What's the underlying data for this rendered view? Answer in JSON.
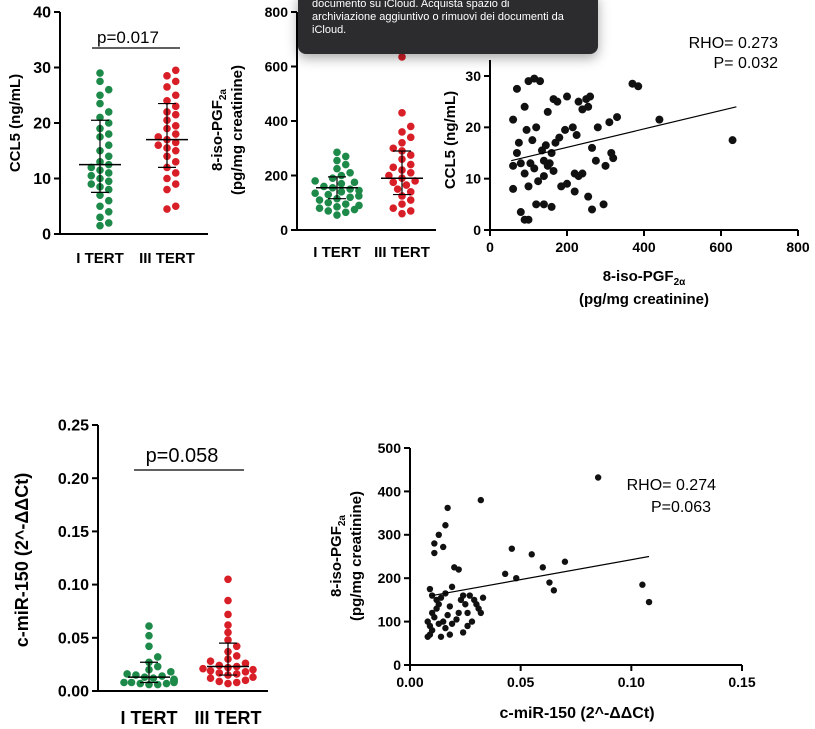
{
  "tooltip": {
    "lines": [
      "documento su iCloud. Acquista spazio di",
      "archiviazione aggiuntivo o rimuovi dei documenti da",
      "iCloud."
    ]
  },
  "colors": {
    "group1": "#1e8a4a",
    "group2": "#d81e27",
    "scatter": "#111111",
    "tooltip_bg": "#2c2c2e"
  },
  "chart_data": [
    {
      "id": "ccl5-dot",
      "type": "scatter",
      "ylabel": "CCL5 (ng/mL)",
      "ylim": [
        0,
        40
      ],
      "yticks": [
        0,
        10,
        20,
        30,
        40
      ],
      "ytick_labels": [
        "0",
        "10",
        "20",
        "30",
        "40"
      ],
      "categories": [
        "I TERT",
        "III TERT"
      ],
      "annotation": "p=0.017",
      "series": [
        {
          "category": "I TERT",
          "color": "#1e8a4a",
          "values": [
            29,
            27.5,
            26,
            25,
            23.5,
            22,
            21,
            20,
            19,
            18,
            17.5,
            16,
            15,
            14,
            13,
            12.5,
            12,
            11.5,
            11,
            10.5,
            10,
            9.5,
            9,
            8.5,
            8,
            7,
            6,
            5,
            4,
            3,
            2,
            1.5
          ],
          "median": 12.5,
          "iqr": [
            7.5,
            20.5
          ]
        },
        {
          "category": "III TERT",
          "color": "#d81e27",
          "values": [
            29.5,
            28.5,
            27.5,
            26.5,
            25,
            24,
            23,
            22,
            21.5,
            20.5,
            19.5,
            19,
            18,
            17.5,
            17,
            16.5,
            16,
            15.5,
            15,
            14,
            13,
            12,
            11,
            10,
            9,
            8,
            5,
            4.5
          ],
          "median": 17,
          "iqr": [
            12,
            23.5
          ]
        }
      ]
    },
    {
      "id": "iso-dot",
      "type": "scatter",
      "ylabel": "8-iso-PGF2a (pg/mg creatinine)",
      "ylim": [
        0,
        800
      ],
      "yticks": [
        0,
        200,
        400,
        600,
        800
      ],
      "ytick_labels": [
        "0",
        "200",
        "400",
        "600",
        "800"
      ],
      "categories": [
        "I TERT",
        "III TERT"
      ],
      "series": [
        {
          "category": "I TERT",
          "color": "#1e8a4a",
          "values": [
            285,
            270,
            255,
            240,
            225,
            210,
            200,
            190,
            180,
            175,
            170,
            160,
            155,
            150,
            145,
            140,
            135,
            130,
            125,
            120,
            115,
            110,
            100,
            95,
            90,
            85,
            80,
            75,
            70,
            65,
            55
          ],
          "median": 155,
          "iqr": [
            115,
            195
          ]
        },
        {
          "category": "III TERT",
          "color": "#d81e27",
          "values": [
            635,
            430,
            380,
            360,
            340,
            320,
            300,
            290,
            275,
            260,
            240,
            230,
            220,
            210,
            200,
            190,
            180,
            175,
            165,
            150,
            140,
            125,
            110,
            95,
            80,
            70,
            60
          ],
          "median": 190,
          "iqr": [
            130,
            290
          ]
        }
      ]
    },
    {
      "id": "ccl5-iso-corr",
      "type": "scatter",
      "xlabel": "8-iso-PGF2α (pg/mg creatinine)",
      "ylabel": "CCL5 (ng/mL)",
      "xlim": [
        0,
        800
      ],
      "ylim": [
        0,
        30
      ],
      "xticks": [
        0,
        200,
        400,
        600,
        800
      ],
      "xtick_labels": [
        "0",
        "200",
        "400",
        "600",
        "800"
      ],
      "yticks": [
        0,
        10,
        20,
        30
      ],
      "ytick_labels": [
        "0",
        "10",
        "20",
        "30"
      ],
      "annotation": [
        "RHO= 0.273",
        "P= 0.032"
      ],
      "fit": {
        "x": [
          55,
          640
        ],
        "y": [
          13.5,
          24
        ]
      },
      "points": [
        [
          70,
          27.5
        ],
        [
          90,
          24
        ],
        [
          100,
          29
        ],
        [
          115,
          29.5
        ],
        [
          130,
          29
        ],
        [
          150,
          23
        ],
        [
          165,
          25.5
        ],
        [
          175,
          25
        ],
        [
          200,
          26
        ],
        [
          230,
          25
        ],
        [
          250,
          25.5
        ],
        [
          260,
          26
        ],
        [
          255,
          24
        ],
        [
          280,
          20
        ],
        [
          310,
          21
        ],
        [
          330,
          22
        ],
        [
          370,
          28.5
        ],
        [
          385,
          28
        ],
        [
          440,
          21.5
        ],
        [
          630,
          17.5
        ],
        [
          60,
          21.5
        ],
        [
          75,
          17
        ],
        [
          95,
          19.5
        ],
        [
          110,
          17.5
        ],
        [
          120,
          20
        ],
        [
          135,
          15.5
        ],
        [
          140,
          13.5
        ],
        [
          145,
          16.5
        ],
        [
          160,
          15
        ],
        [
          170,
          17
        ],
        [
          180,
          18
        ],
        [
          195,
          19.5
        ],
        [
          215,
          20
        ],
        [
          225,
          18.5
        ],
        [
          240,
          23.5
        ],
        [
          265,
          16
        ],
        [
          275,
          13.5
        ],
        [
          300,
          12.5
        ],
        [
          315,
          15
        ],
        [
          320,
          14
        ],
        [
          60,
          12.5
        ],
        [
          70,
          15
        ],
        [
          80,
          13
        ],
        [
          90,
          11
        ],
        [
          100,
          8.5
        ],
        [
          105,
          13
        ],
        [
          115,
          12
        ],
        [
          125,
          9.5
        ],
        [
          140,
          10.5
        ],
        [
          150,
          12.5
        ],
        [
          155,
          13
        ],
        [
          165,
          11.5
        ],
        [
          185,
          8.5
        ],
        [
          200,
          9
        ],
        [
          220,
          7.5
        ],
        [
          240,
          11
        ],
        [
          255,
          6.5
        ],
        [
          265,
          4
        ],
        [
          295,
          5
        ],
        [
          60,
          8
        ],
        [
          80,
          3.5
        ],
        [
          90,
          2
        ],
        [
          100,
          2
        ],
        [
          120,
          5
        ],
        [
          140,
          5
        ],
        [
          160,
          4.5
        ],
        [
          220,
          11
        ],
        [
          230,
          10.5
        ]
      ]
    },
    {
      "id": "mir-dot",
      "type": "scatter",
      "ylabel": "c-miR-150 (2^-ΔΔCt)",
      "ylim": [
        0,
        0.25
      ],
      "yticks": [
        0,
        0.05,
        0.1,
        0.15,
        0.2,
        0.25
      ],
      "ytick_labels": [
        "0.00",
        "0.05",
        "0.10",
        "0.15",
        "0.20",
        "0.25"
      ],
      "categories": [
        "I TERT",
        "III TERT"
      ],
      "annotation": "p=0.058",
      "series": [
        {
          "category": "I TERT",
          "color": "#1e8a4a",
          "values": [
            0.061,
            0.052,
            0.042,
            0.032,
            0.027,
            0.023,
            0.02,
            0.018,
            0.016,
            0.015,
            0.014,
            0.013,
            0.012,
            0.011,
            0.01,
            0.01,
            0.009,
            0.009,
            0.008,
            0.008,
            0.008,
            0.007,
            0.007,
            0.006,
            0.006
          ],
          "median": 0.013,
          "iqr": [
            0.008,
            0.027
          ]
        },
        {
          "category": "III TERT",
          "color": "#d81e27",
          "values": [
            0.105,
            0.085,
            0.072,
            0.062,
            0.055,
            0.048,
            0.042,
            0.037,
            0.033,
            0.03,
            0.028,
            0.026,
            0.024,
            0.023,
            0.022,
            0.021,
            0.02,
            0.019,
            0.018,
            0.017,
            0.016,
            0.015,
            0.013,
            0.012,
            0.01,
            0.009,
            0.008,
            0.007
          ],
          "median": 0.023,
          "iqr": [
            0.015,
            0.045
          ]
        }
      ]
    },
    {
      "id": "iso-mir-corr",
      "type": "scatter",
      "xlabel": "c-miR-150 (2^-ΔΔCt)",
      "ylabel": "8-iso-PGF2a (pg/mg creatinine)",
      "xlim": [
        0,
        0.15
      ],
      "ylim": [
        0,
        500
      ],
      "xticks": [
        0,
        0.05,
        0.1,
        0.15
      ],
      "xtick_labels": [
        "0.00",
        "0.05",
        "0.10",
        "0.15"
      ],
      "yticks": [
        0,
        100,
        200,
        300,
        400,
        500
      ],
      "ytick_labels": [
        "0",
        "100",
        "200",
        "300",
        "400",
        "500"
      ],
      "annotation": [
        "RHO= 0.274",
        "P=0.063"
      ],
      "fit": {
        "x": [
          0.01,
          0.108
        ],
        "y": [
          160,
          250
        ]
      },
      "points": [
        [
          0.085,
          432
        ],
        [
          0.032,
          380
        ],
        [
          0.017,
          362
        ],
        [
          0.016,
          322
        ],
        [
          0.013,
          300
        ],
        [
          0.011,
          280
        ],
        [
          0.015,
          272
        ],
        [
          0.011,
          258
        ],
        [
          0.046,
          268
        ],
        [
          0.055,
          255
        ],
        [
          0.06,
          225
        ],
        [
          0.07,
          238
        ],
        [
          0.063,
          190
        ],
        [
          0.065,
          172
        ],
        [
          0.043,
          210
        ],
        [
          0.048,
          200
        ],
        [
          0.105,
          185
        ],
        [
          0.108,
          145
        ],
        [
          0.009,
          175
        ],
        [
          0.01,
          160
        ],
        [
          0.012,
          150
        ],
        [
          0.013,
          140
        ],
        [
          0.014,
          155
        ],
        [
          0.016,
          165
        ],
        [
          0.018,
          135
        ],
        [
          0.019,
          180
        ],
        [
          0.02,
          225
        ],
        [
          0.022,
          220
        ],
        [
          0.023,
          150
        ],
        [
          0.024,
          160
        ],
        [
          0.025,
          140
        ],
        [
          0.026,
          120
        ],
        [
          0.027,
          160
        ],
        [
          0.029,
          150
        ],
        [
          0.03,
          140
        ],
        [
          0.031,
          130
        ],
        [
          0.032,
          120
        ],
        [
          0.033,
          155
        ],
        [
          0.008,
          100
        ],
        [
          0.009,
          90
        ],
        [
          0.01,
          120
        ],
        [
          0.011,
          110
        ],
        [
          0.012,
          130
        ],
        [
          0.013,
          95
        ],
        [
          0.015,
          100
        ],
        [
          0.016,
          85
        ],
        [
          0.017,
          115
        ],
        [
          0.019,
          95
        ],
        [
          0.021,
          105
        ],
        [
          0.022,
          120
        ],
        [
          0.024,
          75
        ],
        [
          0.026,
          90
        ],
        [
          0.028,
          100
        ],
        [
          0.008,
          65
        ],
        [
          0.009,
          70
        ],
        [
          0.01,
          80
        ],
        [
          0.014,
          65
        ],
        [
          0.018,
          70
        ]
      ]
    }
  ]
}
